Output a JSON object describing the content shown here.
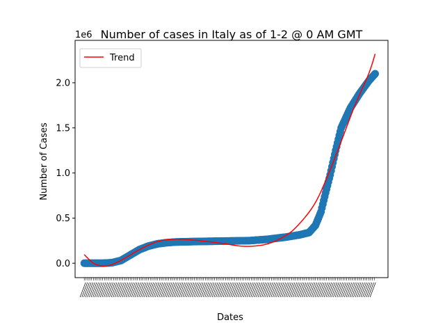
{
  "chart_data": {
    "type": "scatter",
    "title": "Number of cases in Italy as of 1-2 @ 0 AM GMT",
    "xlabel": "Dates",
    "ylabel": "Number of Cases",
    "y_offset_label": "1e6",
    "ylim": [
      -0.16,
      2.47
    ],
    "yticks": [
      0.0,
      0.5,
      1.0,
      1.5,
      2.0
    ],
    "ytick_labels": [
      "0.0",
      "0.5",
      "1.0",
      "1.5",
      "2.0"
    ],
    "grid": false,
    "legend": {
      "placement": "top-left",
      "entries": [
        "Trend"
      ]
    },
    "x_tick_labels_legible": false,
    "x_count": 318,
    "series": [
      {
        "kind": "scatter",
        "color": "#1f77b4",
        "points": [
          [
            0,
            0.0
          ],
          [
            20,
            0.0
          ],
          [
            30,
            0.005
          ],
          [
            40,
            0.03
          ],
          [
            50,
            0.09
          ],
          [
            60,
            0.15
          ],
          [
            70,
            0.19
          ],
          [
            80,
            0.215
          ],
          [
            90,
            0.228
          ],
          [
            100,
            0.235
          ],
          [
            120,
            0.24
          ],
          [
            150,
            0.245
          ],
          [
            180,
            0.25
          ],
          [
            200,
            0.265
          ],
          [
            220,
            0.29
          ],
          [
            235,
            0.315
          ],
          [
            245,
            0.34
          ],
          [
            252,
            0.42
          ],
          [
            258,
            0.57
          ],
          [
            263,
            0.78
          ],
          [
            268,
            0.98
          ],
          [
            274,
            1.25
          ],
          [
            280,
            1.5
          ],
          [
            290,
            1.72
          ],
          [
            300,
            1.88
          ],
          [
            310,
            2.02
          ],
          [
            317,
            2.1
          ]
        ]
      },
      {
        "kind": "line",
        "name": "Trend",
        "color": "#ff0000",
        "points": [
          [
            0,
            0.095
          ],
          [
            10,
            0.0
          ],
          [
            20,
            -0.03
          ],
          [
            30,
            -0.015
          ],
          [
            45,
            0.06
          ],
          [
            60,
            0.15
          ],
          [
            80,
            0.24
          ],
          [
            100,
            0.265
          ],
          [
            120,
            0.255
          ],
          [
            150,
            0.22
          ],
          [
            170,
            0.19
          ],
          [
            185,
            0.19
          ],
          [
            200,
            0.215
          ],
          [
            215,
            0.28
          ],
          [
            230,
            0.39
          ],
          [
            250,
            0.64
          ],
          [
            265,
            0.96
          ],
          [
            280,
            1.35
          ],
          [
            295,
            1.75
          ],
          [
            310,
            2.1
          ],
          [
            317,
            2.32
          ]
        ]
      }
    ]
  }
}
